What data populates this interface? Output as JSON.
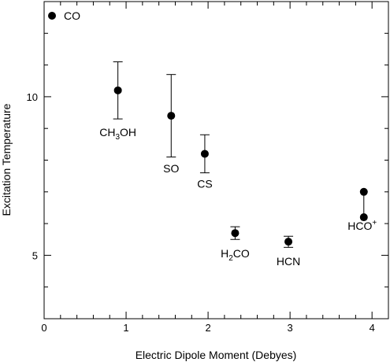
{
  "chart_data": {
    "type": "scatter",
    "title": "",
    "xlabel": "Electric Dipole Moment (Debyes)",
    "ylabel": "Excitation Temperature",
    "xlim": [
      0,
      4.2
    ],
    "ylim": [
      3,
      13
    ],
    "x_ticks": [
      {
        "value": 0,
        "label": "0"
      },
      {
        "value": 1,
        "label": "1"
      },
      {
        "value": 2,
        "label": "2"
      },
      {
        "value": 3,
        "label": "3"
      },
      {
        "value": 4,
        "label": "4"
      }
    ],
    "y_ticks": [
      {
        "value": 5,
        "label": "5"
      },
      {
        "value": 10,
        "label": "10"
      }
    ],
    "grid": false,
    "legend": {
      "position": "top-left",
      "entries": [
        {
          "label": "CO",
          "marker": "filled-circle"
        }
      ]
    },
    "points": [
      {
        "name": "CH3OH",
        "label_main": "CH",
        "label_sub": "3",
        "label_tail": "OH",
        "x": 0.9,
        "y": 10.2,
        "err_low": 9.3,
        "err_high": 11.1
      },
      {
        "name": "SO",
        "label_main": "SO",
        "label_sub": "",
        "label_tail": "",
        "x": 1.55,
        "y": 9.4,
        "err_low": 8.1,
        "err_high": 10.7
      },
      {
        "name": "CS",
        "label_main": "CS",
        "label_sub": "",
        "label_tail": "",
        "x": 1.96,
        "y": 8.2,
        "err_low": 7.6,
        "err_high": 8.8
      },
      {
        "name": "H2CO",
        "label_main": "H",
        "label_sub": "2",
        "label_tail": "CO",
        "x": 2.33,
        "y": 5.7,
        "err_low": 5.5,
        "err_high": 5.9
      },
      {
        "name": "HCN",
        "label_main": "HCN",
        "label_sub": "",
        "label_tail": "",
        "x": 2.98,
        "y": 5.43,
        "err_low": 5.25,
        "err_high": 5.6
      },
      {
        "name": "HCO+",
        "label_main": "HCO",
        "label_sub": "",
        "label_tail": "",
        "label_sup": "+",
        "x": 3.9,
        "y": 6.2,
        "y2": 7.0
      }
    ]
  }
}
